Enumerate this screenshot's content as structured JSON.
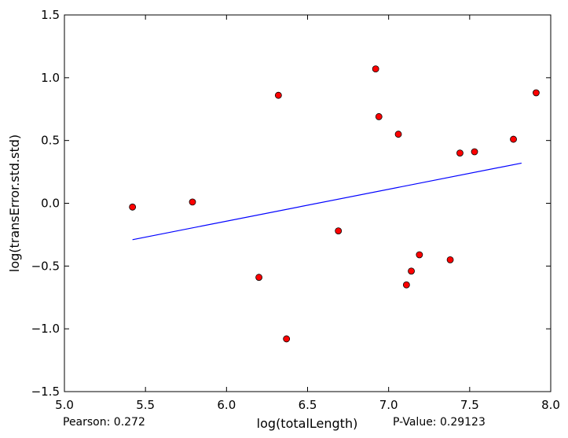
{
  "chart_data": {
    "type": "scatter",
    "title": "",
    "xlabel": "log(totalLength)",
    "ylabel": "log(transError.std.std)",
    "xlim": [
      5.0,
      8.0
    ],
    "ylim": [
      -1.5,
      1.5
    ],
    "x_ticks": [
      5.0,
      5.5,
      6.0,
      6.5,
      7.0,
      7.5,
      8.0
    ],
    "y_ticks": [
      -1.5,
      -1.0,
      -0.5,
      0.0,
      0.5,
      1.0,
      1.5
    ],
    "x_tick_labels": [
      "5.0",
      "5.5",
      "6.0",
      "6.5",
      "7.0",
      "7.5",
      "8.0"
    ],
    "y_tick_labels": [
      "−1.5",
      "−1.0",
      "−0.5",
      "0.0",
      "0.5",
      "1.0",
      "1.5"
    ],
    "grid": false,
    "series": [
      {
        "name": "points",
        "kind": "scatter",
        "color": "#ff0000",
        "edge_color": "#000000",
        "x": [
          5.42,
          5.79,
          6.2,
          6.32,
          6.37,
          6.69,
          6.92,
          6.94,
          7.06,
          7.11,
          7.14,
          7.19,
          7.38,
          7.44,
          7.53,
          7.77,
          7.91
        ],
        "y": [
          -0.03,
          0.01,
          -0.59,
          0.86,
          -1.08,
          -0.22,
          1.07,
          0.69,
          0.55,
          -0.65,
          -0.54,
          -0.41,
          -0.45,
          0.4,
          0.41,
          0.51,
          0.88
        ]
      },
      {
        "name": "regression",
        "kind": "line",
        "color": "#0000ff",
        "x": [
          5.42,
          7.82
        ],
        "y": [
          -0.29,
          0.32
        ]
      }
    ],
    "stats": {
      "pearson": "Pearson: 0.272",
      "pvalue": "P-Value: 0.29123"
    }
  }
}
